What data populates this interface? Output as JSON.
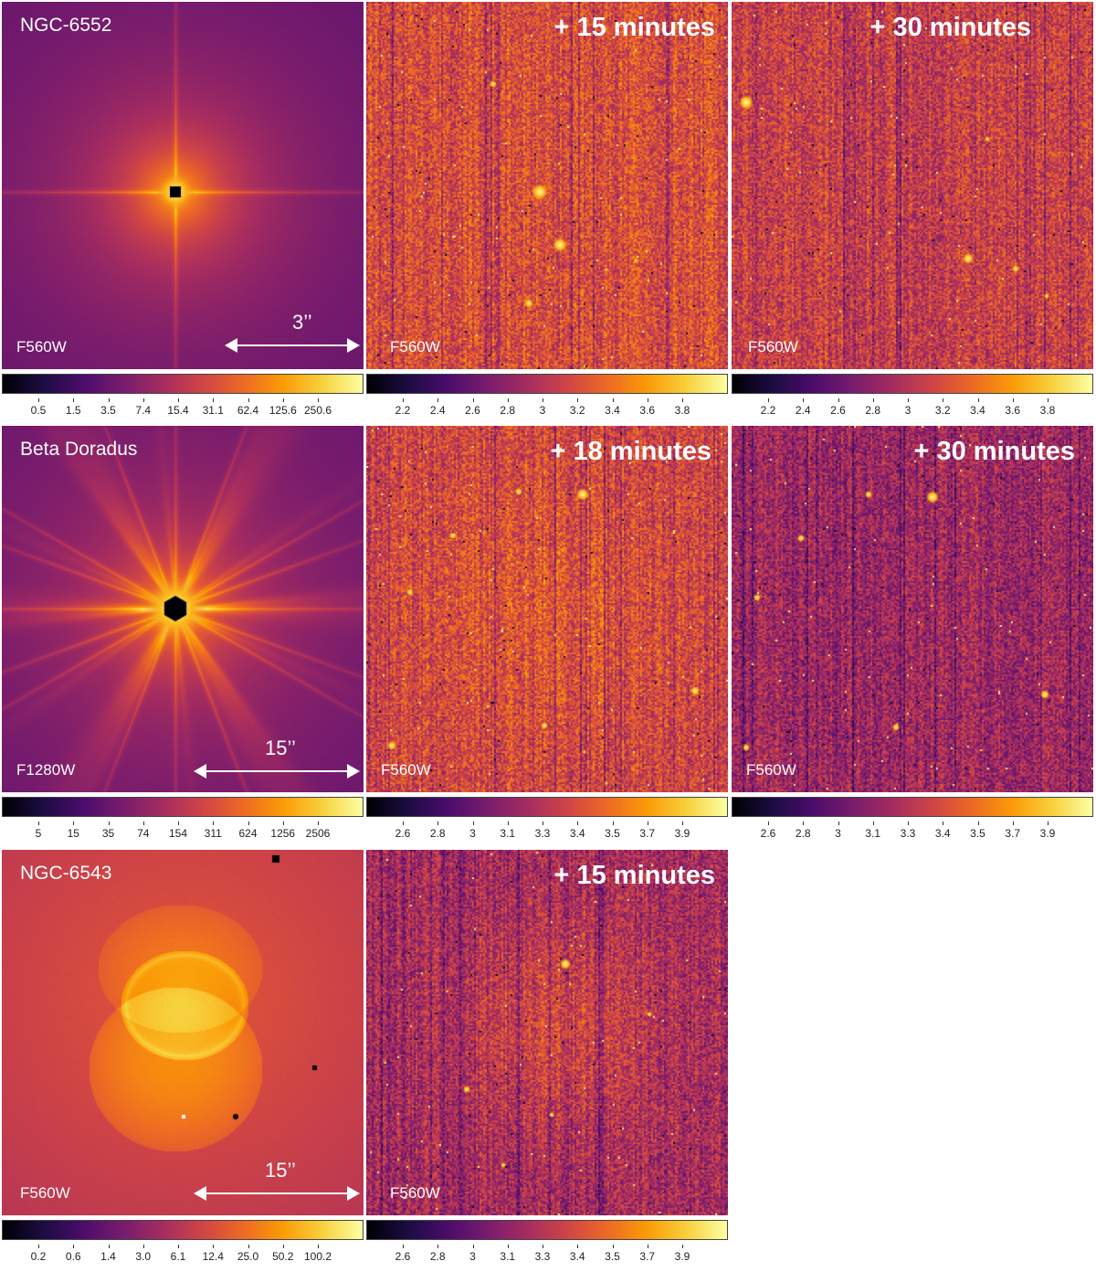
{
  "colormap": [
    "#000004",
    "#1b0c41",
    "#4a0c6b",
    "#781c6d",
    "#a52c60",
    "#cf4446",
    "#ed6925",
    "#fb9b06",
    "#f7d13d",
    "#fcffa4"
  ],
  "rows": [
    {
      "object": "NGC-6552",
      "panels": [
        {
          "type": "reference",
          "filter": "F560W",
          "scale": "3’’",
          "colorbar_ticks": [
            "0.5",
            "1.5",
            "3.5",
            "7.4",
            "15.4",
            "31.1",
            "62.4",
            "125.6",
            "250.6"
          ]
        },
        {
          "type": "difference",
          "time": "+ 15 minutes",
          "filter": "F560W",
          "colorbar_ticks": [
            "2.2",
            "2.4",
            "2.6",
            "2.8",
            "3",
            "3.2",
            "3.4",
            "3.6",
            "3.8"
          ]
        },
        {
          "type": "difference",
          "time": "+ 30 minutes",
          "filter": "F560W",
          "colorbar_ticks": [
            "2.2",
            "2.4",
            "2.6",
            "2.8",
            "3",
            "3.2",
            "3.4",
            "3.6",
            "3.8"
          ]
        }
      ]
    },
    {
      "object": "Beta Doradus",
      "panels": [
        {
          "type": "reference",
          "filter": "F1280W",
          "scale": "15’’",
          "colorbar_ticks": [
            "5",
            "15",
            "35",
            "74",
            "154",
            "311",
            "624",
            "1256",
            "2506"
          ]
        },
        {
          "type": "difference",
          "time": "+ 18 minutes",
          "filter": "F560W",
          "colorbar_ticks": [
            "2.6",
            "2.8",
            "3",
            "3.1",
            "3.3",
            "3.4",
            "3.5",
            "3.7",
            "3.9"
          ]
        },
        {
          "type": "difference",
          "time": "+ 30 minutes",
          "filter": "F560W",
          "colorbar_ticks": [
            "2.6",
            "2.8",
            "3",
            "3.1",
            "3.3",
            "3.4",
            "3.5",
            "3.7",
            "3.9"
          ]
        }
      ]
    },
    {
      "object": "NGC-6543",
      "panels": [
        {
          "type": "reference",
          "filter": "F560W",
          "scale": "15’’",
          "colorbar_ticks": [
            "0.2",
            "0.6",
            "1.4",
            "3.0",
            "6.1",
            "12.4",
            "25.0",
            "50.2",
            "100.2"
          ]
        },
        {
          "type": "difference",
          "time": "+ 15 minutes",
          "filter": "F560W",
          "colorbar_ticks": [
            "2.6",
            "2.8",
            "3",
            "3.1",
            "3.3",
            "3.4",
            "3.5",
            "3.7",
            "3.9"
          ]
        }
      ]
    }
  ]
}
